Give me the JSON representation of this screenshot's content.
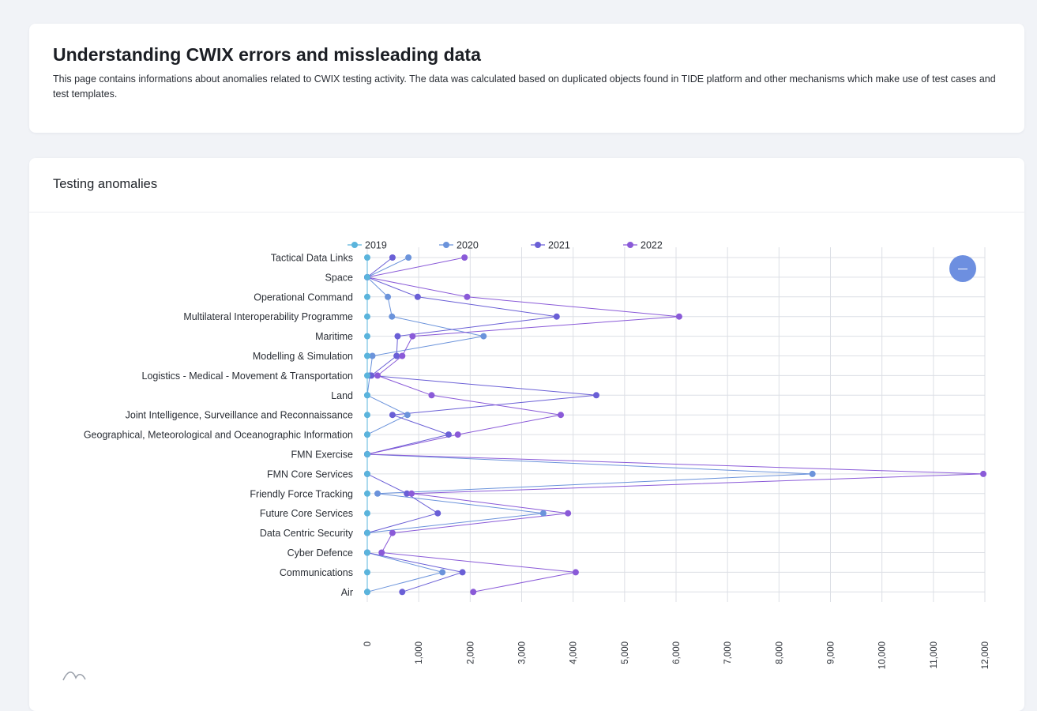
{
  "header": {
    "title": "Understanding CWIX errors and missleading data",
    "description": "This page contains informations about anomalies related to CWIX testing activity. The data was calculated based on duplicated objects found in TIDE platform and other mechanisms which make use of test cases and test templates."
  },
  "chart_section": {
    "title": "Testing anomalies",
    "toggle_icon": "minus-icon"
  },
  "colors": {
    "2019": "#5ab4dc",
    "2020": "#6b93db",
    "2021": "#6a5fd6",
    "2022": "#8a5ad8",
    "grid": "#dcdfe5",
    "accent": "#6d8fe0"
  },
  "chart_data": {
    "type": "line",
    "orientation": "horizontal",
    "categories": [
      "Tactical Data Links",
      "Space",
      "Operational Command",
      "Multilateral Interoperability Programme",
      "Maritime",
      "Modelling & Simulation",
      "Logistics - Medical - Movement & Transportation",
      "Land",
      "Joint Intelligence, Surveillance and Reconnaissance",
      "Geographical, Meteorological and Oceanographic Information",
      "FMN Exercise",
      "FMN Core Services",
      "Friendly Force Tracking",
      "Future Core Services",
      "Data Centric Security",
      "Cyber Defence",
      "Communications",
      "Air"
    ],
    "series": [
      {
        "name": "2019",
        "values": [
          0,
          0,
          0,
          0,
          0,
          0,
          0,
          0,
          0,
          0,
          0,
          0,
          0,
          0,
          0,
          0,
          0,
          0
        ]
      },
      {
        "name": "2020",
        "values": [
          800,
          0,
          400,
          480,
          2260,
          100,
          50,
          0,
          780,
          0,
          0,
          8650,
          200,
          3420,
          0,
          0,
          1460,
          0
        ]
      },
      {
        "name": "2021",
        "values": [
          490,
          0,
          980,
          3680,
          590,
          570,
          80,
          4450,
          490,
          1580,
          0,
          0,
          770,
          1370,
          0,
          0,
          1850,
          680
        ]
      },
      {
        "name": "2022",
        "values": [
          1890,
          0,
          1940,
          6060,
          880,
          680,
          200,
          1250,
          3760,
          1760,
          0,
          11970,
          860,
          3900,
          490,
          280,
          4050,
          2060
        ]
      }
    ],
    "xlim": [
      0,
      12000
    ],
    "xticks": [
      "0",
      "1,000",
      "2,000",
      "3,000",
      "4,000",
      "5,000",
      "6,000",
      "7,000",
      "8,000",
      "9,000",
      "10,000",
      "11,000",
      "12,000"
    ],
    "xtick_values": [
      0,
      1000,
      2000,
      3000,
      4000,
      5000,
      6000,
      7000,
      8000,
      9000,
      10000,
      11000,
      12000
    ],
    "grid": true,
    "legend": "top"
  }
}
